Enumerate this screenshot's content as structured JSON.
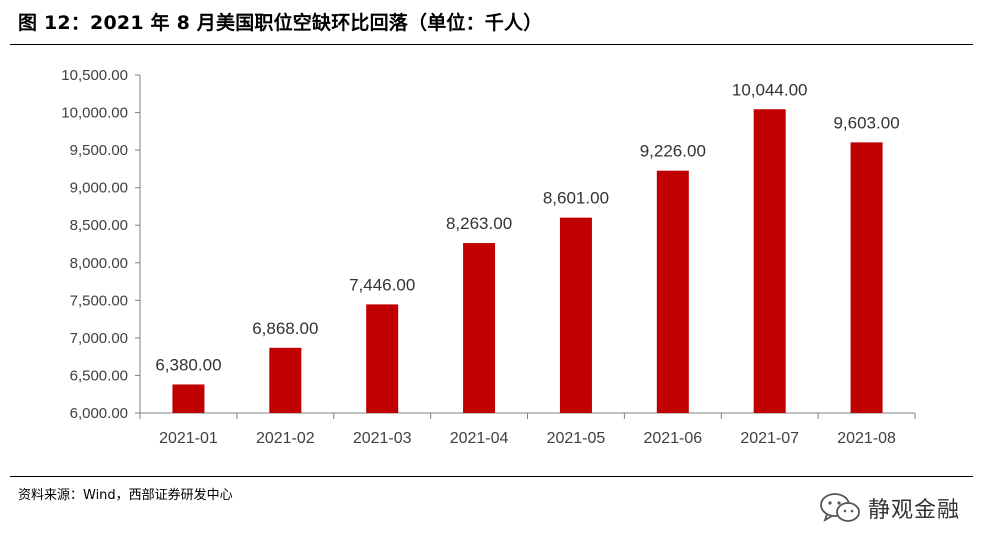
{
  "title": "图 12：2021 年 8 月美国职位空缺环比回落（单位：千人）",
  "source": "资料来源：Wind，西部证券研发中心",
  "watermark": {
    "icon": "wechat-icon",
    "text": "静观金融"
  },
  "colors": {
    "bar": "#c00000",
    "axis": "#808080",
    "text": "#404040"
  },
  "chart_data": {
    "type": "bar",
    "categories": [
      "2021-01",
      "2021-02",
      "2021-03",
      "2021-04",
      "2021-05",
      "2021-06",
      "2021-07",
      "2021-08"
    ],
    "values": [
      6380,
      6868,
      7446,
      8263,
      8601,
      9226,
      10044,
      9603
    ],
    "value_labels": [
      "6,380.00",
      "6,868.00",
      "7,446.00",
      "8,263.00",
      "8,601.00",
      "9,226.00",
      "10,044.00",
      "9,603.00"
    ],
    "ylim": [
      6000,
      10500
    ],
    "yticks": [
      6000,
      6500,
      7000,
      7500,
      8000,
      8500,
      9000,
      9500,
      10000,
      10500
    ],
    "ytick_labels": [
      "6,000.00",
      "6,500.00",
      "7,000.00",
      "7,500.00",
      "8,000.00",
      "8,500.00",
      "9,000.00",
      "9,500.00",
      "10,000.00",
      "10,500.00"
    ],
    "grid": false,
    "legend": "none"
  }
}
